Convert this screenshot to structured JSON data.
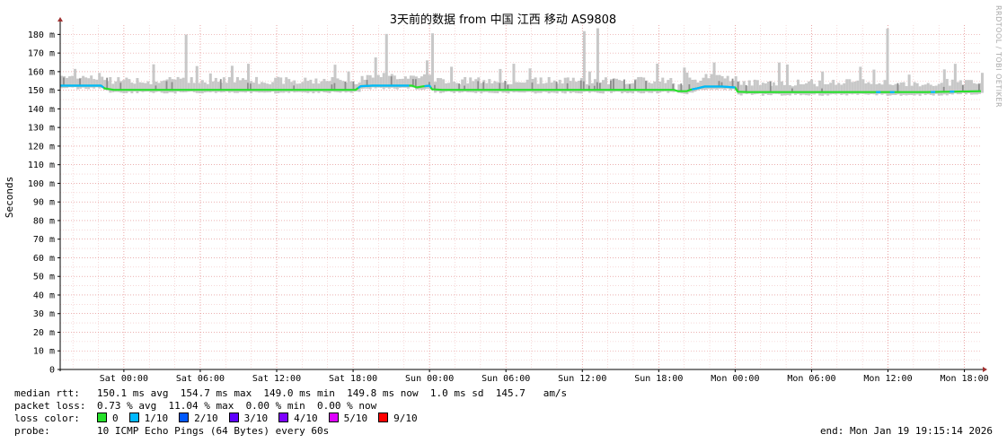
{
  "chart_data": {
    "type": "line",
    "title": "3天前的数据 from  中国 江西 移动 AS9808",
    "ylabel": "Seconds",
    "ylim": [
      0,
      0.185
    ],
    "grid": true,
    "y_ticks": [
      {
        "v": 0,
        "label": "0"
      },
      {
        "v": 0.01,
        "label": "10 m"
      },
      {
        "v": 0.02,
        "label": "20 m"
      },
      {
        "v": 0.03,
        "label": "30 m"
      },
      {
        "v": 0.04,
        "label": "40 m"
      },
      {
        "v": 0.05,
        "label": "50 m"
      },
      {
        "v": 0.06,
        "label": "60 m"
      },
      {
        "v": 0.07,
        "label": "70 m"
      },
      {
        "v": 0.08,
        "label": "80 m"
      },
      {
        "v": 0.09,
        "label": "90 m"
      },
      {
        "v": 0.1,
        "label": "100 m"
      },
      {
        "v": 0.11,
        "label": "110 m"
      },
      {
        "v": 0.12,
        "label": "120 m"
      },
      {
        "v": 0.13,
        "label": "130 m"
      },
      {
        "v": 0.14,
        "label": "140 m"
      },
      {
        "v": 0.15,
        "label": "150 m"
      },
      {
        "v": 0.16,
        "label": "160 m"
      },
      {
        "v": 0.17,
        "label": "170 m"
      },
      {
        "v": 0.18,
        "label": "180 m"
      }
    ],
    "x_range_hours": [
      -5,
      67.3
    ],
    "x_ticks": [
      {
        "h": 0,
        "label": "Sat 00:00"
      },
      {
        "h": 6,
        "label": "Sat 06:00"
      },
      {
        "h": 12,
        "label": "Sat 12:00"
      },
      {
        "h": 18,
        "label": "Sat 18:00"
      },
      {
        "h": 24,
        "label": "Sun 00:00"
      },
      {
        "h": 30,
        "label": "Sun 06:00"
      },
      {
        "h": 36,
        "label": "Sun 12:00"
      },
      {
        "h": 42,
        "label": "Sun 18:00"
      },
      {
        "h": 48,
        "label": "Mon 00:00"
      },
      {
        "h": 54,
        "label": "Mon 06:00"
      },
      {
        "h": 60,
        "label": "Mon 12:00"
      },
      {
        "h": 66,
        "label": "Mon 18:00"
      }
    ],
    "median_series": [
      [
        -5,
        0.1525
      ],
      [
        -3,
        0.1525
      ],
      [
        -1.8,
        0.1525
      ],
      [
        -1.5,
        0.151
      ],
      [
        -0.8,
        0.1502
      ],
      [
        2,
        0.1502
      ],
      [
        6,
        0.1502
      ],
      [
        10,
        0.1502
      ],
      [
        16,
        0.1502
      ],
      [
        18.2,
        0.1502
      ],
      [
        18.6,
        0.1522
      ],
      [
        19.5,
        0.1525
      ],
      [
        22,
        0.1525
      ],
      [
        22.6,
        0.1525
      ],
      [
        23,
        0.1515
      ],
      [
        23.6,
        0.1522
      ],
      [
        24,
        0.1525
      ],
      [
        24.2,
        0.1505
      ],
      [
        25,
        0.1502
      ],
      [
        30,
        0.1502
      ],
      [
        35,
        0.1502
      ],
      [
        40,
        0.1502
      ],
      [
        42,
        0.1502
      ],
      [
        43.2,
        0.1502
      ],
      [
        43.5,
        0.1495
      ],
      [
        44.2,
        0.1495
      ],
      [
        44.5,
        0.1503
      ],
      [
        45,
        0.151
      ],
      [
        45.6,
        0.152
      ],
      [
        47,
        0.152
      ],
      [
        48,
        0.1515
      ],
      [
        48.2,
        0.1492
      ],
      [
        49,
        0.149
      ],
      [
        52,
        0.149
      ],
      [
        55,
        0.149
      ],
      [
        58,
        0.149
      ],
      [
        60,
        0.149
      ],
      [
        63,
        0.149
      ],
      [
        67.3,
        0.1495
      ]
    ],
    "gaps_hours": [
      [
        43.1,
        43.4
      ]
    ]
  },
  "legend": {
    "median_label": "median rtt:",
    "median_values": "150.1 ms avg  154.7 ms max  149.0 ms min  149.8 ms now  1.0 ms sd  145.7   am/s",
    "loss_label": "packet loss:",
    "loss_values": "0.73 % avg  11.04 % max  0.00 % min  0.00 % now",
    "color_label": "loss color:",
    "colors": [
      {
        "label": "0",
        "color": "#26e02a"
      },
      {
        "label": "1/10",
        "color": "#00b8ff"
      },
      {
        "label": "2/10",
        "color": "#0059ff"
      },
      {
        "label": "3/10",
        "color": "#5e00ff"
      },
      {
        "label": "4/10",
        "color": "#7e00ff"
      },
      {
        "label": "5/10",
        "color": "#dd00ff"
      },
      {
        "label": "9/10",
        "color": "#ff0000"
      }
    ],
    "probe_label": "probe:",
    "probe_value": "10 ICMP Echo Pings (64 Bytes) every 60s",
    "end_value": "end: Mon Jan 19 19:15:14 2026"
  },
  "watermark": "RRDTOOL / TOBI OETIKER"
}
